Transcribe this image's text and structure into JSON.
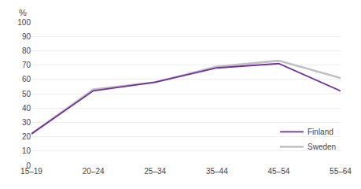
{
  "chart_data": {
    "type": "line",
    "ylabel": "%",
    "categories": [
      "15–19",
      "20–24",
      "25–34",
      "35–44",
      "45–54",
      "55–64"
    ],
    "series": [
      {
        "name": "Sweden",
        "color": "#c0c0c0",
        "values": [
          22,
          53,
          58,
          69,
          73,
          61
        ]
      },
      {
        "name": "Finland",
        "color": "#7030a0",
        "values": [
          22,
          52,
          58,
          68,
          71,
          52
        ]
      }
    ],
    "ylim": [
      0,
      100
    ],
    "yticks": [
      0,
      10,
      20,
      30,
      40,
      50,
      60,
      70,
      80,
      90,
      100
    ],
    "grid": true,
    "legend": "lower right"
  }
}
